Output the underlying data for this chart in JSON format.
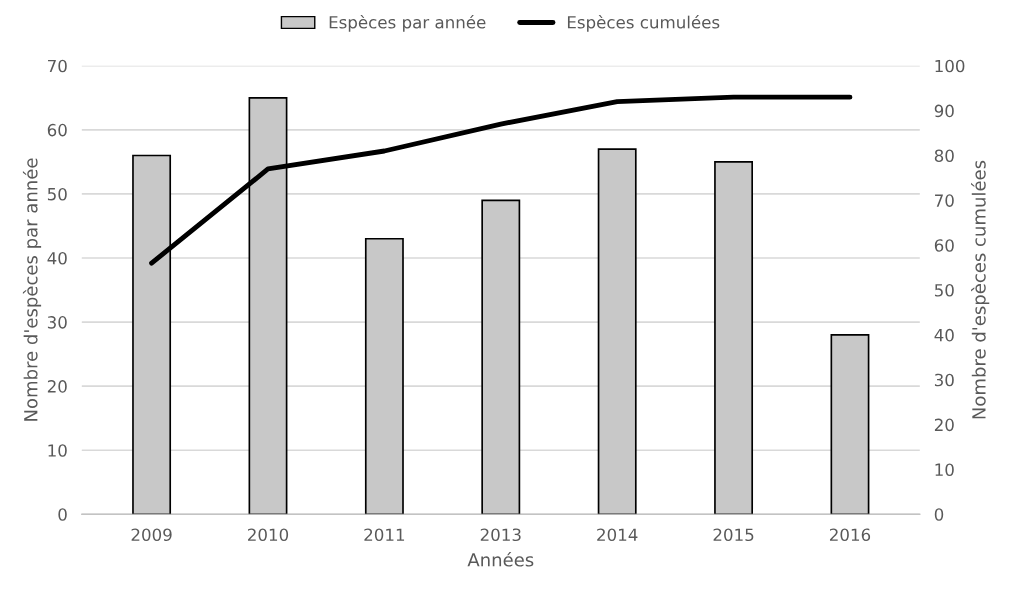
{
  "chart_data": {
    "type": "bar",
    "xlabel": "Années",
    "ylabel": "Nombre d'espèces par année",
    "y2label": "Nombre d'espèces cumulées",
    "categories": [
      "2009",
      "2010",
      "2011",
      "2013",
      "2014",
      "2015",
      "2016"
    ],
    "series": [
      {
        "name": "Espèces par année",
        "color": "#c8c8c8",
        "values": [
          56,
          65,
          43,
          49,
          57,
          55,
          28
        ]
      },
      {
        "name": "Espèces cumulées",
        "type": "line",
        "axis": "y2",
        "color": "#000000",
        "values": [
          56,
          77,
          81,
          87,
          92,
          93,
          93
        ]
      }
    ],
    "ylim": [
      0,
      70
    ],
    "yticks": [
      0,
      10,
      20,
      30,
      40,
      50,
      60,
      70
    ],
    "y2lim": [
      0,
      100
    ],
    "y2ticks": [
      0,
      10,
      20,
      30,
      40,
      50,
      60,
      70,
      80,
      90,
      100
    ],
    "grid": "y",
    "legend": "top"
  }
}
